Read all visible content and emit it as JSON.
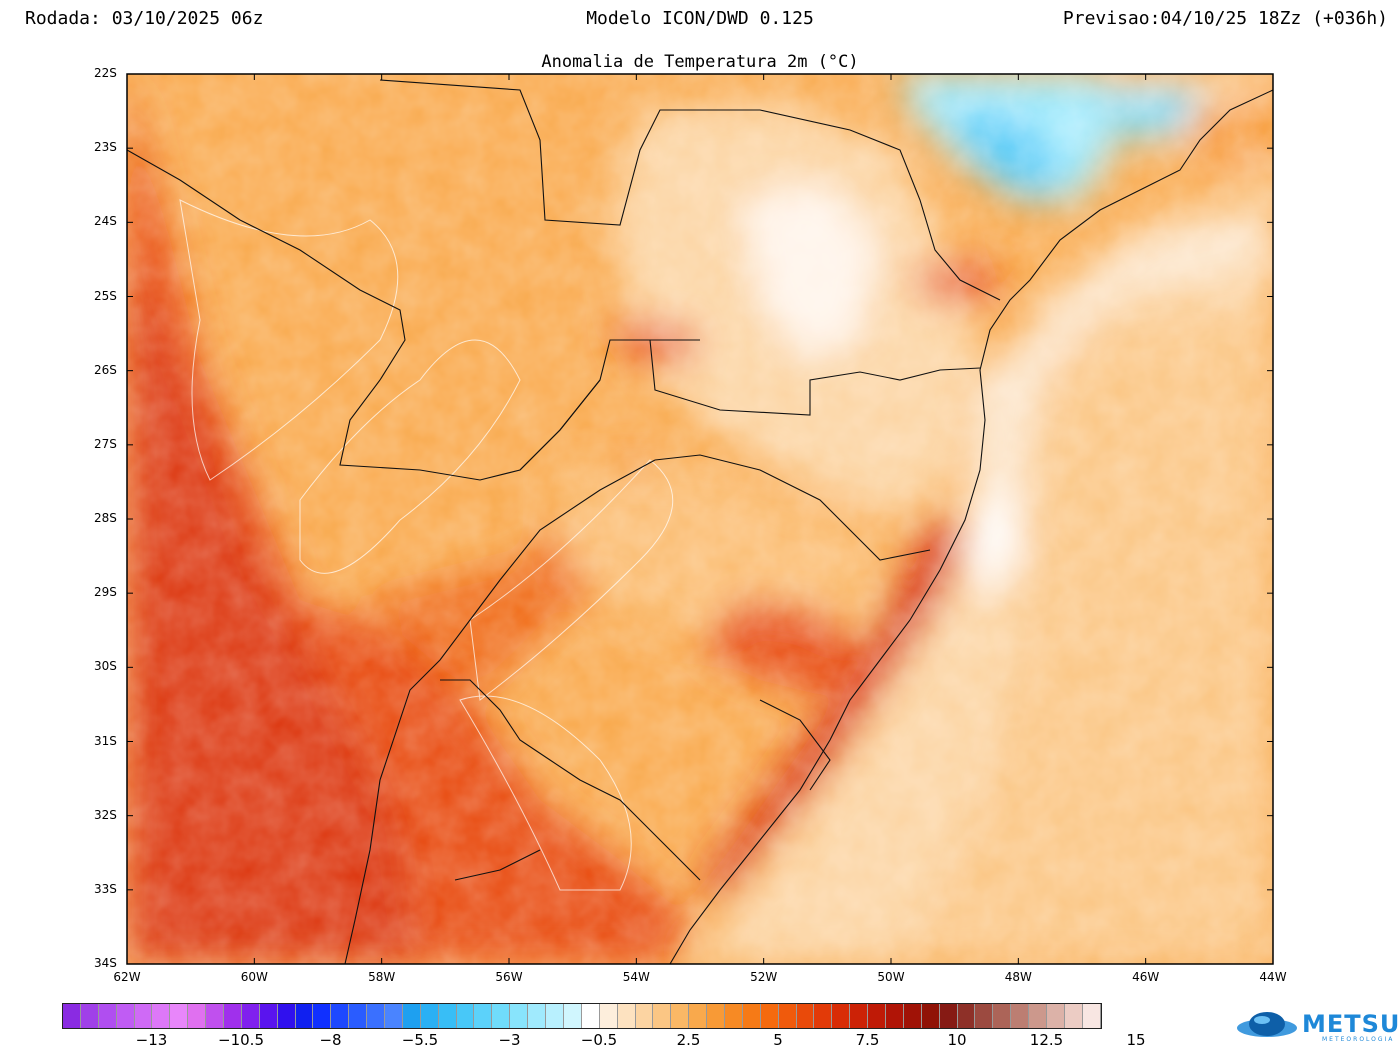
{
  "header": {
    "run": "Rodada: 03/10/2025 06z",
    "model": "Modelo ICON/DWD 0.125",
    "forecast": "Previsao:04/10/25 18Zz (+036h)"
  },
  "map": {
    "title": "Anomalia de Temperatura 2m (°C)",
    "lat_labels": [
      "22S",
      "23S",
      "24S",
      "25S",
      "26S",
      "27S",
      "28S",
      "29S",
      "30S",
      "31S",
      "32S",
      "33S",
      "34S"
    ],
    "lon_labels": [
      "62W",
      "60W",
      "58W",
      "56W",
      "54W",
      "52W",
      "50W",
      "48W",
      "46W",
      "44W"
    ]
  },
  "colorbar": {
    "labels": [
      "-13",
      "-10.5",
      "-8",
      "-5.5",
      "-3",
      "-0.5",
      "2.5",
      "5",
      "7.5",
      "10",
      "12.5",
      "15"
    ],
    "colors": [
      "#8a2be2",
      "#a040e8",
      "#b04ef0",
      "#c05cf4",
      "#cf6af6",
      "#dd78f8",
      "#e886fa",
      "#e070f0",
      "#c050ee",
      "#a030ec",
      "#8020ee",
      "#5a14ee",
      "#3010ee",
      "#1020f0",
      "#1030ff",
      "#1e48ff",
      "#2a5cff",
      "#3a70ff",
      "#4a84ff",
      "#1ea0f0",
      "#2ab0f4",
      "#38bef6",
      "#48c8f8",
      "#5cd2fa",
      "#70dcfb",
      "#88e4fc",
      "#a0eafd",
      "#b8f0fe",
      "#d0f6fe",
      "#ffffff",
      "#fdeedc",
      "#fde2c0",
      "#fcd4a2",
      "#fbc684",
      "#fab866",
      "#f9a94c",
      "#f89a36",
      "#f78a24",
      "#f67a16",
      "#f56a0e",
      "#f05a0c",
      "#e94a0a",
      "#e23a08",
      "#d82c06",
      "#cc2206",
      "#bf1a06",
      "#b01406",
      "#a01206",
      "#901206",
      "#861a14",
      "#8e3028",
      "#9c4a40",
      "#ac6458",
      "#bc7e72",
      "#cc988c",
      "#dcb2a8",
      "#ecccc4",
      "#f8e6e2"
    ],
    "unit": "°C"
  },
  "branding": {
    "logo_name": "METSUL",
    "logo_sub": "METEOROLOGIA",
    "logo_icon": "globe-icon",
    "accent": "#1e88d8"
  }
}
